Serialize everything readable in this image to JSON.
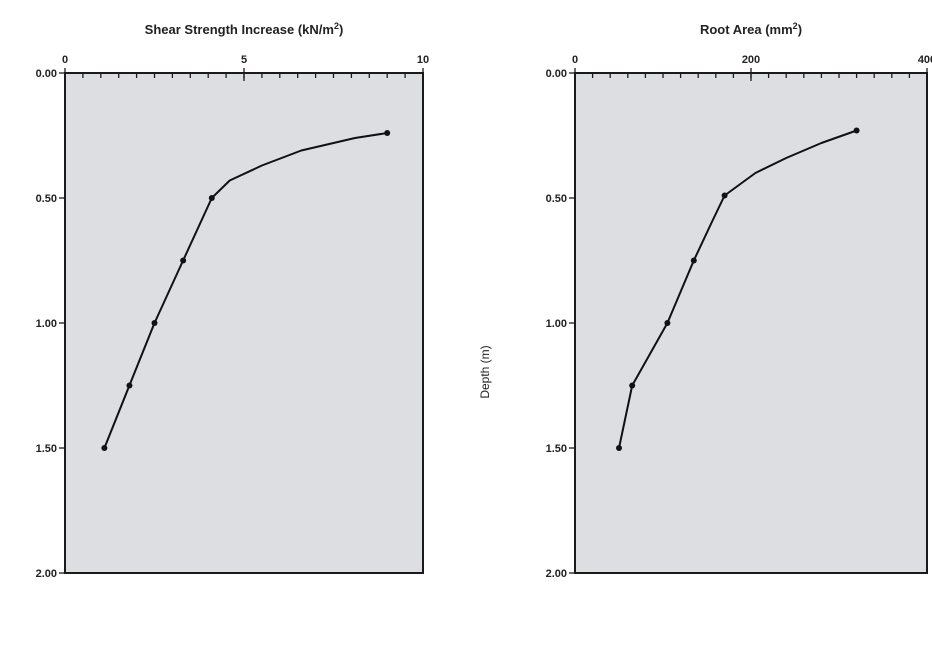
{
  "chart_data": [
    {
      "type": "line",
      "title": "Shear Strength Increase (kN/m²)",
      "title_main": "Shear Strength Increase (kN/m",
      "title_sup": "2",
      "title_tail": ")",
      "xlabel": "",
      "ylabel": "",
      "x_axis_position": "top",
      "y_inverted": true,
      "xlim": [
        0,
        10
      ],
      "ylim": [
        0,
        2
      ],
      "x_ticks": [
        "0",
        "5",
        "10"
      ],
      "x_tick_values": [
        0,
        5,
        10
      ],
      "y_ticks": [
        "0.00",
        "0.50",
        "1.00",
        "1.50",
        "2.00"
      ],
      "y_tick_values": [
        0,
        0.5,
        1,
        1.5,
        2
      ],
      "grid": false,
      "series": [
        {
          "points": [
            {
              "x": 1.1,
              "y": 1.5
            },
            {
              "x": 1.8,
              "y": 1.25
            },
            {
              "x": 2.5,
              "y": 1.0
            },
            {
              "x": 3.3,
              "y": 0.75
            },
            {
              "x": 4.1,
              "y": 0.5
            },
            {
              "x": 9.0,
              "y": 0.24
            }
          ],
          "curve": [
            {
              "x": 1.1,
              "y": 1.5
            },
            {
              "x": 1.8,
              "y": 1.25
            },
            {
              "x": 2.5,
              "y": 1.0
            },
            {
              "x": 3.3,
              "y": 0.75
            },
            {
              "x": 4.1,
              "y": 0.5
            },
            {
              "x": 4.6,
              "y": 0.43
            },
            {
              "x": 5.5,
              "y": 0.37
            },
            {
              "x": 6.6,
              "y": 0.31
            },
            {
              "x": 8.1,
              "y": 0.26
            },
            {
              "x": 9.0,
              "y": 0.24
            }
          ]
        }
      ]
    },
    {
      "type": "line",
      "title": "Root Area (mm²)",
      "title_main": "Root Area (mm",
      "title_sup": "2",
      "title_tail": ")",
      "xlabel": "",
      "ylabel": "Depth (m)",
      "x_axis_position": "top",
      "y_inverted": true,
      "xlim": [
        0,
        400
      ],
      "ylim": [
        0,
        2
      ],
      "x_ticks": [
        "0",
        "200",
        "400"
      ],
      "x_tick_values": [
        0,
        200,
        400
      ],
      "y_ticks": [
        "0.00",
        "0.50",
        "1.00",
        "1.50",
        "2.00"
      ],
      "y_tick_values": [
        0,
        0.5,
        1,
        1.5,
        2
      ],
      "grid": false,
      "series": [
        {
          "points": [
            {
              "x": 50,
              "y": 1.5
            },
            {
              "x": 65,
              "y": 1.25
            },
            {
              "x": 105,
              "y": 1.0
            },
            {
              "x": 135,
              "y": 0.75
            },
            {
              "x": 170,
              "y": 0.49
            },
            {
              "x": 320,
              "y": 0.23
            }
          ],
          "curve": [
            {
              "x": 50,
              "y": 1.5
            },
            {
              "x": 65,
              "y": 1.25
            },
            {
              "x": 105,
              "y": 1.0
            },
            {
              "x": 135,
              "y": 0.75
            },
            {
              "x": 155,
              "y": 0.6
            },
            {
              "x": 170,
              "y": 0.49
            },
            {
              "x": 205,
              "y": 0.4
            },
            {
              "x": 240,
              "y": 0.34
            },
            {
              "x": 280,
              "y": 0.28
            },
            {
              "x": 320,
              "y": 0.23
            }
          ]
        }
      ]
    }
  ]
}
